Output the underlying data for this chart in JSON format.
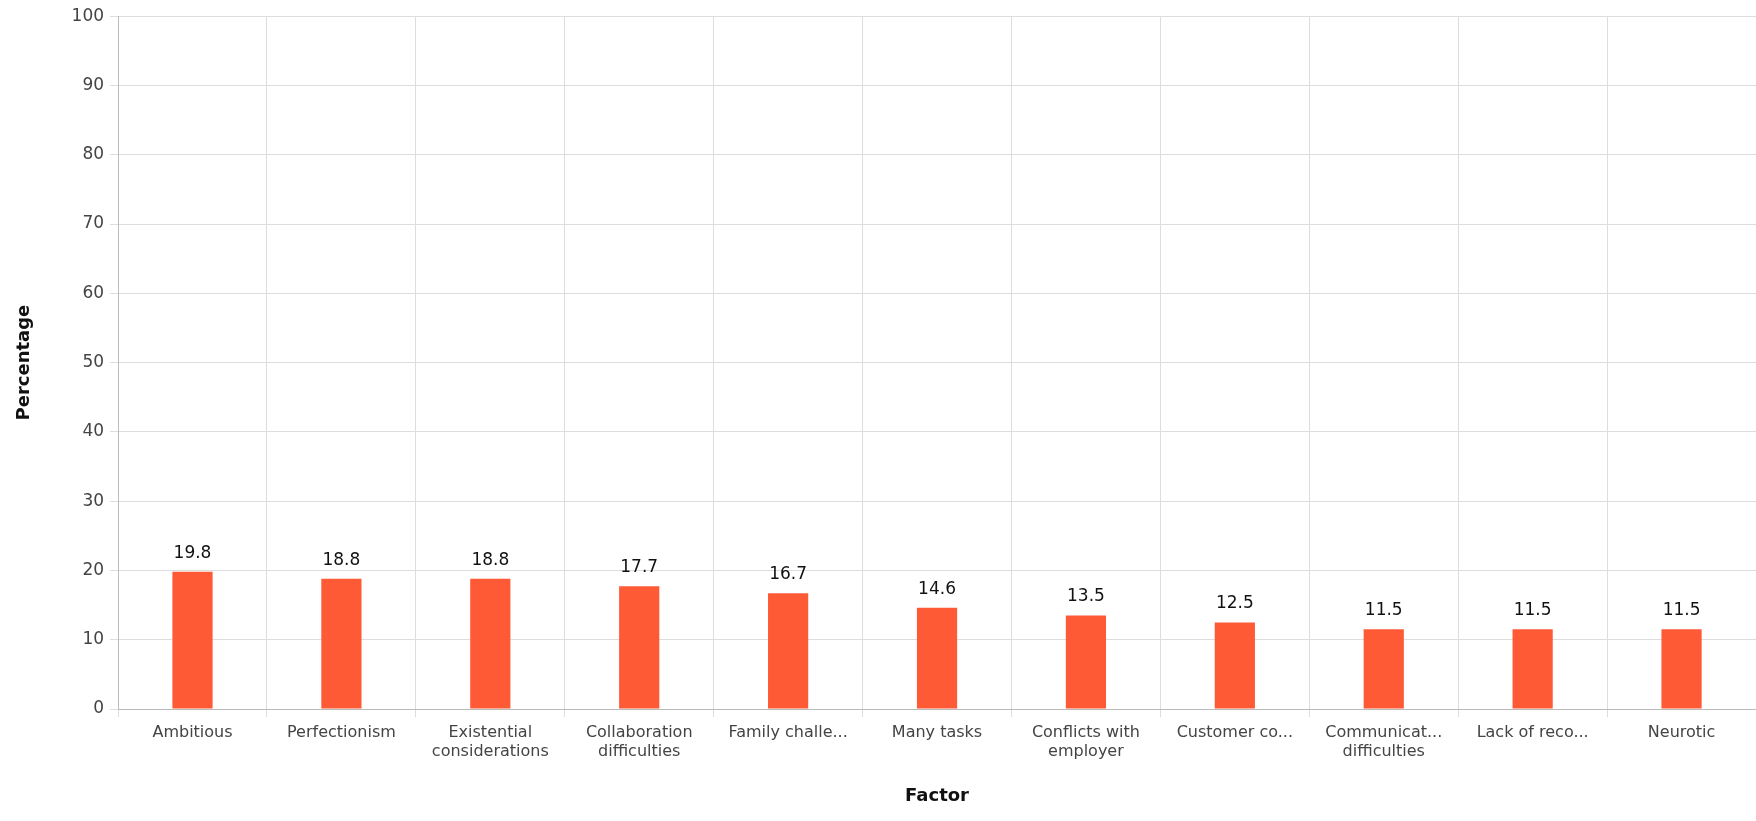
{
  "chart_data": {
    "type": "bar",
    "xlabel": "Factor",
    "ylabel": "Percentage",
    "categories": [
      "Ambitious",
      "Perfectionism",
      "Existential considerations",
      "Collaboration difficulties",
      "Family challe...",
      "Many tasks",
      "Conflicts with employer",
      "Customer co...",
      "Communicat... difficulties",
      "Lack of reco...",
      "Neurotic"
    ],
    "values": [
      19.8,
      18.8,
      18.8,
      17.7,
      16.7,
      14.6,
      13.5,
      12.5,
      11.5,
      11.5,
      11.5
    ],
    "color": "#ff5a36",
    "ylim": [
      0,
      100
    ],
    "yticks": [
      0,
      10,
      20,
      30,
      40,
      50,
      60,
      70,
      80,
      90,
      100
    ],
    "grid": true,
    "legend": false,
    "data_labels": true
  }
}
